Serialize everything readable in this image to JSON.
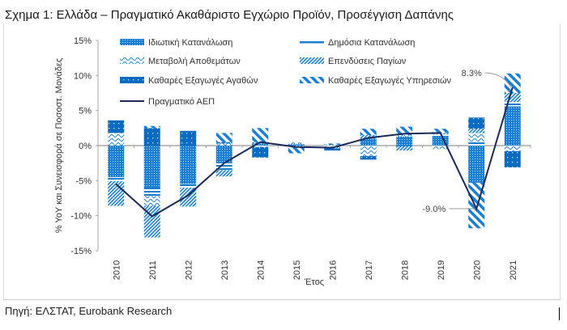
{
  "title": "Σχημα 1: Ελλάδα – Πραγματικό Ακαθάριστο Εγχώριο Προϊόν, Προσέγγιση Δαπάνης",
  "source": "Πηγή: ΕΛΣΤΑΤ, Eurobank Research",
  "colors": {
    "bar": "#1a7fd4",
    "line": "#1b2a5c",
    "axis": "#aaaaaa"
  },
  "chart_data": {
    "type": "bar",
    "stacked": true,
    "xlabel": "Έτος",
    "ylabel": "% YoY και Συνεισφορά σε Ποσοστ. Μονάδες",
    "ylim": [
      -15,
      15
    ],
    "yticks": [
      "-15%",
      "-10%",
      "-5%",
      "0%",
      "5%",
      "10%",
      "15%"
    ],
    "categories": [
      "2010",
      "2011",
      "2012",
      "2013",
      "2014",
      "2015",
      "2016",
      "2017",
      "2018",
      "2019",
      "2020",
      "2021"
    ],
    "series": [
      {
        "name": "Ιδιωτική Κατανάλωση",
        "pattern": "dots",
        "values": [
          -4.5,
          -6.0,
          -5.5,
          -2.5,
          0.3,
          0.2,
          0.0,
          1.0,
          1.3,
          1.3,
          -5.3,
          5.6
        ]
      },
      {
        "name": "Δημόσια Κατανάλωση",
        "pattern": "hline",
        "values": [
          -0.6,
          -1.2,
          -0.5,
          -1.0,
          0.0,
          0.0,
          0.0,
          0.0,
          -0.1,
          0.3,
          0.5,
          0.6
        ]
      },
      {
        "name": "Μεταβολή Αποθεμάτων",
        "pattern": "wave",
        "values": [
          1.8,
          -1.4,
          0.0,
          0.3,
          -0.2,
          0.4,
          -0.4,
          -1.5,
          0.2,
          -0.5,
          1.3,
          -0.8
        ]
      },
      {
        "name": "Επενδύσεις Παγίων",
        "pattern": "finediag",
        "values": [
          -3.5,
          -4.5,
          -2.7,
          -0.9,
          0.2,
          -0.1,
          0.1,
          0.5,
          -0.6,
          0.2,
          0.6,
          1.3
        ]
      },
      {
        "name": "Καθαρές Εξαγωγές Αγαθών",
        "pattern": "solid",
        "values": [
          1.8,
          2.5,
          2.1,
          0.2,
          -1.5,
          0.0,
          -0.3,
          -0.5,
          0.0,
          0.0,
          1.6,
          -2.3
        ]
      },
      {
        "name": "Καθαρές Εξαγωγές Υπηρεσιών",
        "pattern": "widediag",
        "values": [
          0.0,
          0.3,
          0.0,
          1.3,
          2.0,
          -1.0,
          0.2,
          0.9,
          1.2,
          0.6,
          -6.5,
          2.8
        ]
      }
    ],
    "line": {
      "name": "Πραγματικό ΑΕΠ",
      "values": [
        -5.5,
        -10.1,
        -7.1,
        -2.5,
        0.5,
        -0.2,
        -0.3,
        1.1,
        1.7,
        1.8,
        -9.0,
        8.3
      ]
    },
    "annotations": [
      {
        "category": "2020",
        "text": "-9.0%"
      },
      {
        "category": "2021",
        "text": "8.3%"
      }
    ]
  }
}
